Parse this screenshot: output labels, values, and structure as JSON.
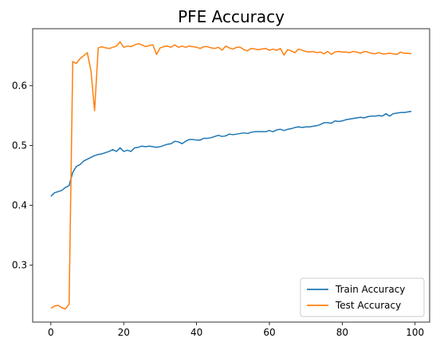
{
  "chart_data": {
    "type": "line",
    "title": "PFE Accuracy",
    "xlabel": "",
    "ylabel": "",
    "xlim": [
      -5,
      104
    ],
    "ylim": [
      0.205,
      0.695
    ],
    "xticks": [
      0,
      20,
      40,
      60,
      80,
      100
    ],
    "yticks": [
      0.3,
      0.4,
      0.5,
      0.6
    ],
    "grid": false,
    "legend": "lower-right",
    "series": [
      {
        "name": "Train Accuracy",
        "color": "#1f77b4",
        "x": [
          0,
          1,
          2,
          3,
          4,
          5,
          6,
          7,
          8,
          9,
          10,
          11,
          12,
          13,
          14,
          15,
          16,
          17,
          18,
          19,
          20,
          21,
          22,
          23,
          24,
          25,
          26,
          27,
          28,
          29,
          30,
          31,
          32,
          33,
          34,
          35,
          36,
          37,
          38,
          39,
          40,
          41,
          42,
          43,
          44,
          45,
          46,
          47,
          48,
          49,
          50,
          51,
          52,
          53,
          54,
          55,
          56,
          57,
          58,
          59,
          60,
          61,
          62,
          63,
          64,
          65,
          66,
          67,
          68,
          69,
          70,
          71,
          72,
          73,
          74,
          75,
          76,
          77,
          78,
          79,
          80,
          81,
          82,
          83,
          84,
          85,
          86,
          87,
          88,
          89,
          90,
          91,
          92,
          93,
          94,
          95,
          96,
          97,
          98,
          99
        ],
        "values": [
          0.415,
          0.421,
          0.423,
          0.425,
          0.43,
          0.433,
          0.455,
          0.465,
          0.468,
          0.474,
          0.477,
          0.48,
          0.483,
          0.485,
          0.486,
          0.488,
          0.49,
          0.493,
          0.49,
          0.496,
          0.49,
          0.492,
          0.49,
          0.496,
          0.497,
          0.499,
          0.498,
          0.499,
          0.498,
          0.497,
          0.498,
          0.5,
          0.502,
          0.503,
          0.507,
          0.506,
          0.503,
          0.507,
          0.51,
          0.51,
          0.509,
          0.509,
          0.512,
          0.512,
          0.513,
          0.515,
          0.517,
          0.515,
          0.516,
          0.519,
          0.518,
          0.519,
          0.52,
          0.521,
          0.52,
          0.522,
          0.523,
          0.523,
          0.523,
          0.523,
          0.525,
          0.523,
          0.526,
          0.527,
          0.525,
          0.527,
          0.528,
          0.53,
          0.531,
          0.53,
          0.531,
          0.531,
          0.532,
          0.533,
          0.535,
          0.538,
          0.538,
          0.537,
          0.541,
          0.54,
          0.541,
          0.543,
          0.544,
          0.545,
          0.546,
          0.547,
          0.546,
          0.548,
          0.549,
          0.549,
          0.55,
          0.549,
          0.553,
          0.549,
          0.553,
          0.554,
          0.555,
          0.555,
          0.556,
          0.557
        ]
      },
      {
        "name": "Test Accuracy",
        "color": "#ff7f0e",
        "x": [
          0,
          1,
          2,
          3,
          4,
          5,
          6,
          7,
          8,
          9,
          10,
          11,
          12,
          13,
          14,
          15,
          16,
          17,
          18,
          19,
          20,
          21,
          22,
          23,
          24,
          25,
          26,
          27,
          28,
          29,
          30,
          31,
          32,
          33,
          34,
          35,
          36,
          37,
          38,
          39,
          40,
          41,
          42,
          43,
          44,
          45,
          46,
          47,
          48,
          49,
          50,
          51,
          52,
          53,
          54,
          55,
          56,
          57,
          58,
          59,
          60,
          61,
          62,
          63,
          64,
          65,
          66,
          67,
          68,
          69,
          70,
          71,
          72,
          73,
          74,
          75,
          76,
          77,
          78,
          79,
          80,
          81,
          82,
          83,
          84,
          85,
          86,
          87,
          88,
          89,
          90,
          91,
          92,
          93,
          94,
          95,
          96,
          97,
          98,
          99
        ],
        "values": [
          0.228,
          0.232,
          0.233,
          0.229,
          0.227,
          0.235,
          0.64,
          0.637,
          0.645,
          0.65,
          0.655,
          0.625,
          0.558,
          0.663,
          0.665,
          0.663,
          0.662,
          0.664,
          0.666,
          0.673,
          0.664,
          0.666,
          0.665,
          0.668,
          0.67,
          0.668,
          0.665,
          0.667,
          0.668,
          0.652,
          0.663,
          0.665,
          0.666,
          0.664,
          0.668,
          0.664,
          0.666,
          0.664,
          0.666,
          0.665,
          0.664,
          0.662,
          0.665,
          0.665,
          0.663,
          0.662,
          0.664,
          0.659,
          0.666,
          0.663,
          0.661,
          0.664,
          0.664,
          0.66,
          0.658,
          0.662,
          0.661,
          0.66,
          0.661,
          0.662,
          0.659,
          0.661,
          0.659,
          0.662,
          0.651,
          0.66,
          0.658,
          0.655,
          0.661,
          0.659,
          0.657,
          0.656,
          0.657,
          0.655,
          0.656,
          0.653,
          0.657,
          0.652,
          0.656,
          0.657,
          0.656,
          0.656,
          0.655,
          0.657,
          0.656,
          0.654,
          0.657,
          0.656,
          0.654,
          0.653,
          0.655,
          0.653,
          0.653,
          0.654,
          0.653,
          0.652,
          0.656,
          0.654,
          0.654,
          0.653
        ]
      }
    ]
  }
}
